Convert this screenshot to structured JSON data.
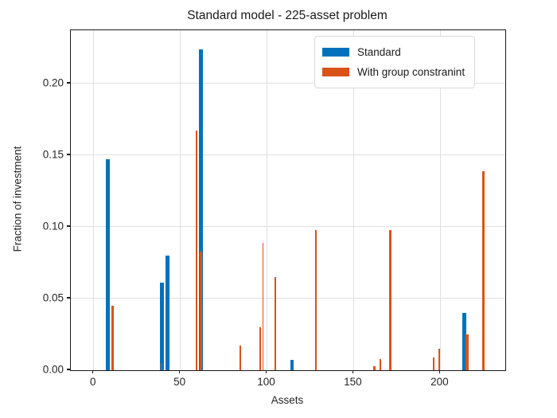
{
  "chart_data": {
    "type": "bar",
    "title": "Standard model - 225-asset problem",
    "xlabel": "Assets",
    "ylabel": "Fraction of investment",
    "xlim": [
      -13.2,
      237.5
    ],
    "ylim": [
      0,
      0.2372
    ],
    "grid": true,
    "legend_position": "upper right",
    "xticks": {
      "values": [
        0,
        50,
        100,
        150,
        200
      ],
      "labels": [
        "0",
        "50",
        "100",
        "150",
        "200"
      ]
    },
    "yticks": {
      "values": [
        0,
        0.05,
        0.1,
        0.15,
        0.2
      ],
      "labels": [
        "0.00",
        "0.05",
        "0.10",
        "0.15",
        "0.20"
      ]
    },
    "series": [
      {
        "name": "Standard",
        "color": "#0072BD",
        "bar_width": 2.2,
        "points": [
          {
            "x": 8.3,
            "y": 0.147
          },
          {
            "x": 39.2,
            "y": 0.061
          },
          {
            "x": 42.5,
            "y": 0.08
          },
          {
            "x": 61.7,
            "y": 0.224
          },
          {
            "x": 114.4,
            "y": 0.007
          },
          {
            "x": 213.9,
            "y": 0.04
          }
        ]
      },
      {
        "name": "With group constranint",
        "color": "#D95319",
        "bar_width": 1.3,
        "points": [
          {
            "x": 10.8,
            "y": 0.045
          },
          {
            "x": 39.0,
            "y": 0.005,
            "w": 0.7
          },
          {
            "x": 59.4,
            "y": 0.167,
            "w": 0.8
          },
          {
            "x": 61.9,
            "y": 0.083,
            "w": 1.7
          },
          {
            "x": 84.6,
            "y": 0.017
          },
          {
            "x": 96.2,
            "y": 0.03,
            "w": 1.1
          },
          {
            "x": 97.7,
            "y": 0.089,
            "w": 0.8
          },
          {
            "x": 104.8,
            "y": 0.065
          },
          {
            "x": 128.2,
            "y": 0.098
          },
          {
            "x": 161.9,
            "y": 0.003,
            "w": 1.1
          },
          {
            "x": 165.3,
            "y": 0.008,
            "w": 1.1
          },
          {
            "x": 171.1,
            "y": 0.098
          },
          {
            "x": 196.2,
            "y": 0.009,
            "w": 1.1
          },
          {
            "x": 199.3,
            "y": 0.015,
            "w": 1.1
          },
          {
            "x": 215.4,
            "y": 0.025,
            "w": 1.7
          },
          {
            "x": 224.9,
            "y": 0.139
          }
        ]
      }
    ]
  }
}
